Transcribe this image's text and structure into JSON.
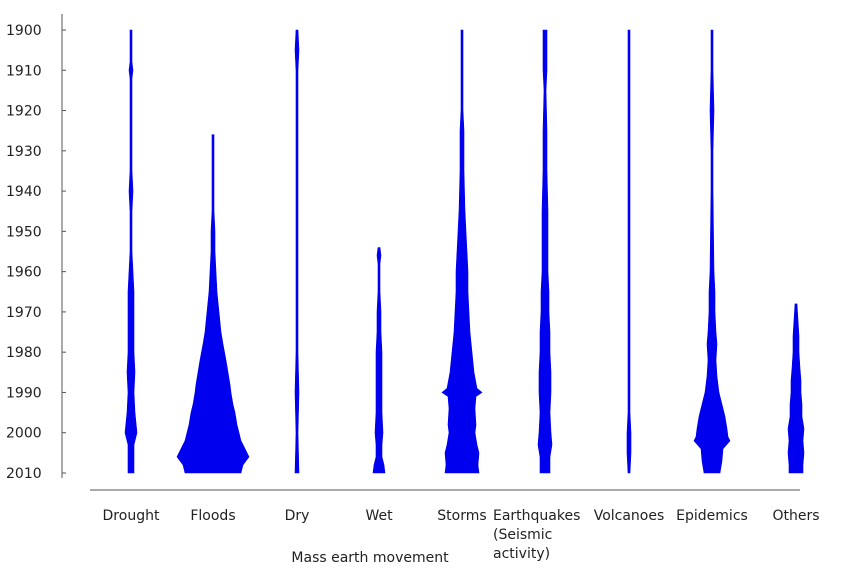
{
  "chart_data": {
    "type": "violin",
    "title": "",
    "xlabel": "Mass earth movement",
    "ylabel": "",
    "y_axis_inverted": true,
    "ylim": [
      1900,
      2010
    ],
    "yticks": [
      1900,
      1910,
      1920,
      1930,
      1940,
      1950,
      1960,
      1970,
      1980,
      1990,
      2000,
      2010
    ],
    "grid": false,
    "legend": "none",
    "color": "#0000ee",
    "categories": [
      {
        "label_lines": [
          "Drought"
        ],
        "start_year": 1900,
        "end_year": 2010,
        "profile": [
          [
            1900,
            1
          ],
          [
            1908,
            1
          ],
          [
            1910,
            2
          ],
          [
            1912,
            1
          ],
          [
            1935,
            1
          ],
          [
            1940,
            2
          ],
          [
            1945,
            1
          ],
          [
            1955,
            1
          ],
          [
            1960,
            2
          ],
          [
            1965,
            3
          ],
          [
            1970,
            3
          ],
          [
            1975,
            3
          ],
          [
            1980,
            3
          ],
          [
            1985,
            4
          ],
          [
            1990,
            3
          ],
          [
            1995,
            4
          ],
          [
            2000,
            6
          ],
          [
            2003,
            3
          ],
          [
            2006,
            3
          ],
          [
            2010,
            3
          ]
        ]
      },
      {
        "label_lines": [
          "Floods"
        ],
        "start_year": 1926,
        "end_year": 2010,
        "profile": [
          [
            1926,
            1
          ],
          [
            1945,
            1
          ],
          [
            1950,
            2
          ],
          [
            1955,
            2
          ],
          [
            1960,
            3
          ],
          [
            1965,
            4
          ],
          [
            1970,
            6
          ],
          [
            1975,
            8
          ],
          [
            1978,
            10
          ],
          [
            1982,
            13
          ],
          [
            1985,
            15
          ],
          [
            1988,
            17
          ],
          [
            1990,
            18
          ],
          [
            1993,
            20
          ],
          [
            1995,
            22
          ],
          [
            1998,
            24
          ],
          [
            2000,
            26
          ],
          [
            2002,
            28
          ],
          [
            2004,
            32
          ],
          [
            2006,
            36
          ],
          [
            2008,
            30
          ],
          [
            2010,
            28
          ]
        ]
      },
      {
        "label_lines": [
          "Dry"
        ],
        "start_year": 1900,
        "end_year": 2010,
        "profile": [
          [
            1900,
            1
          ],
          [
            1905,
            2
          ],
          [
            1910,
            1
          ],
          [
            1920,
            1
          ],
          [
            1937,
            1
          ],
          [
            1950,
            1
          ],
          [
            1970,
            1
          ],
          [
            1980,
            1
          ],
          [
            1990,
            2
          ],
          [
            2000,
            1
          ],
          [
            2010,
            2
          ]
        ]
      },
      {
        "label_lines": [
          "Wet"
        ],
        "start_year": 1954,
        "end_year": 2010,
        "profile": [
          [
            1954,
            1
          ],
          [
            1956,
            2
          ],
          [
            1958,
            1
          ],
          [
            1965,
            1
          ],
          [
            1970,
            2
          ],
          [
            1975,
            2
          ],
          [
            1980,
            3
          ],
          [
            1985,
            3
          ],
          [
            1990,
            3
          ],
          [
            1995,
            3
          ],
          [
            2000,
            4
          ],
          [
            2003,
            3
          ],
          [
            2006,
            3
          ],
          [
            2008,
            5
          ],
          [
            2010,
            6
          ]
        ]
      },
      {
        "label_lines": [
          "Storms"
        ],
        "start_year": 1900,
        "end_year": 2010,
        "profile": [
          [
            1900,
            1
          ],
          [
            1910,
            1
          ],
          [
            1920,
            1
          ],
          [
            1925,
            2
          ],
          [
            1935,
            2
          ],
          [
            1945,
            3
          ],
          [
            1950,
            4
          ],
          [
            1955,
            5
          ],
          [
            1960,
            6
          ],
          [
            1965,
            6
          ],
          [
            1970,
            7
          ],
          [
            1975,
            8
          ],
          [
            1980,
            10
          ],
          [
            1985,
            12
          ],
          [
            1989,
            15
          ],
          [
            1990,
            20
          ],
          [
            1991,
            14
          ],
          [
            1994,
            13
          ],
          [
            1998,
            14
          ],
          [
            2000,
            13
          ],
          [
            2003,
            15
          ],
          [
            2005,
            17
          ],
          [
            2008,
            16
          ],
          [
            2010,
            17
          ]
        ]
      },
      {
        "label_lines": [
          "Earthquakes",
          "(Seismic",
          "activity)"
        ],
        "start_year": 1900,
        "end_year": 2010,
        "profile": [
          [
            1900,
            2
          ],
          [
            1905,
            2
          ],
          [
            1910,
            2
          ],
          [
            1915,
            1
          ],
          [
            1925,
            2
          ],
          [
            1935,
            2
          ],
          [
            1945,
            3
          ],
          [
            1955,
            3
          ],
          [
            1960,
            3
          ],
          [
            1965,
            4
          ],
          [
            1970,
            4
          ],
          [
            1975,
            5
          ],
          [
            1980,
            5
          ],
          [
            1985,
            6
          ],
          [
            1990,
            6
          ],
          [
            1995,
            5
          ],
          [
            2000,
            6
          ],
          [
            2003,
            7
          ],
          [
            2006,
            5
          ],
          [
            2010,
            5
          ]
        ]
      },
      {
        "label_lines": [
          "Volcanoes"
        ],
        "start_year": 1900,
        "end_year": 2010,
        "profile": [
          [
            1900,
            1
          ],
          [
            1930,
            1
          ],
          [
            1950,
            1
          ],
          [
            1980,
            1
          ],
          [
            1995,
            1
          ],
          [
            2000,
            2
          ],
          [
            2005,
            2
          ],
          [
            2010,
            1
          ]
        ]
      },
      {
        "label_lines": [
          "Epidemics"
        ],
        "start_year": 1900,
        "end_year": 2010,
        "profile": [
          [
            1900,
            1
          ],
          [
            1910,
            1
          ],
          [
            1920,
            2
          ],
          [
            1930,
            1
          ],
          [
            1940,
            1
          ],
          [
            1960,
            2
          ],
          [
            1965,
            3
          ],
          [
            1970,
            3
          ],
          [
            1975,
            4
          ],
          [
            1978,
            5
          ],
          [
            1982,
            4
          ],
          [
            1986,
            5
          ],
          [
            1990,
            7
          ],
          [
            1993,
            10
          ],
          [
            1996,
            13
          ],
          [
            1999,
            15
          ],
          [
            2001,
            16
          ],
          [
            2002,
            18
          ],
          [
            2004,
            11
          ],
          [
            2007,
            10
          ],
          [
            2010,
            8
          ]
        ]
      },
      {
        "label_lines": [
          "Others"
        ],
        "start_year": 1968,
        "end_year": 2010,
        "profile": [
          [
            1968,
            1
          ],
          [
            1972,
            2
          ],
          [
            1976,
            3
          ],
          [
            1980,
            3
          ],
          [
            1984,
            4
          ],
          [
            1987,
            5
          ],
          [
            1990,
            5
          ],
          [
            1993,
            6
          ],
          [
            1996,
            6
          ],
          [
            1999,
            8
          ],
          [
            2002,
            7
          ],
          [
            2005,
            8
          ],
          [
            2008,
            7
          ],
          [
            2010,
            7
          ]
        ]
      }
    ]
  }
}
